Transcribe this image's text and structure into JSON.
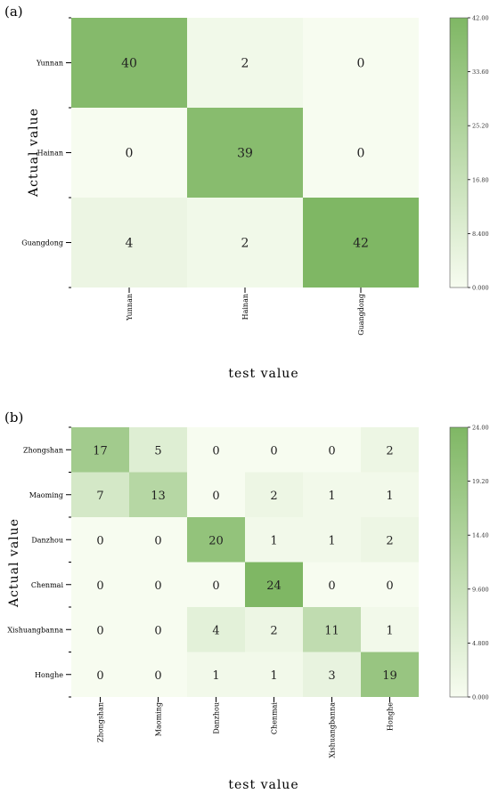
{
  "chart_data": [
    {
      "type": "heatmap",
      "panel_label": "(a)",
      "row_labels": [
        "Yunnan",
        "Hainan",
        "Guangdong"
      ],
      "col_labels": [
        "Yunnan",
        "Hainan",
        "Guangdong"
      ],
      "values": [
        [
          40,
          2,
          0
        ],
        [
          0,
          39,
          0
        ],
        [
          4,
          2,
          42
        ]
      ],
      "xlabel": "test value",
      "ylabel": "Actual value",
      "colorbar": {
        "min": 0,
        "max": 42,
        "ticks": [
          "0.000",
          "8.400",
          "16.80",
          "25.20",
          "33.60",
          "42.00"
        ]
      },
      "colors": {
        "low": "#f7fcf0",
        "high": "#7fb764"
      }
    },
    {
      "type": "heatmap",
      "panel_label": "(b)",
      "row_labels": [
        "Zhongshan",
        "Maoming",
        "Danzhou",
        "Chenmai",
        "Xishuangbanna",
        "Honghe"
      ],
      "col_labels": [
        "Zhongshan",
        "Maoming",
        "Danzhou",
        "Chenmai",
        "Xishuangbanna",
        "Honghe"
      ],
      "values": [
        [
          17,
          5,
          0,
          0,
          0,
          2
        ],
        [
          7,
          13,
          0,
          2,
          1,
          1
        ],
        [
          0,
          0,
          20,
          1,
          1,
          2
        ],
        [
          0,
          0,
          0,
          24,
          0,
          0
        ],
        [
          0,
          0,
          4,
          2,
          11,
          1
        ],
        [
          0,
          0,
          1,
          1,
          3,
          19
        ]
      ],
      "xlabel": "test value",
      "ylabel": "Actual value",
      "colorbar": {
        "min": 0,
        "max": 24,
        "ticks": [
          "0.000",
          "4.800",
          "9.600",
          "14.40",
          "19.20",
          "24.00"
        ]
      },
      "colors": {
        "low": "#f7fcf0",
        "high": "#7fb764"
      }
    }
  ]
}
